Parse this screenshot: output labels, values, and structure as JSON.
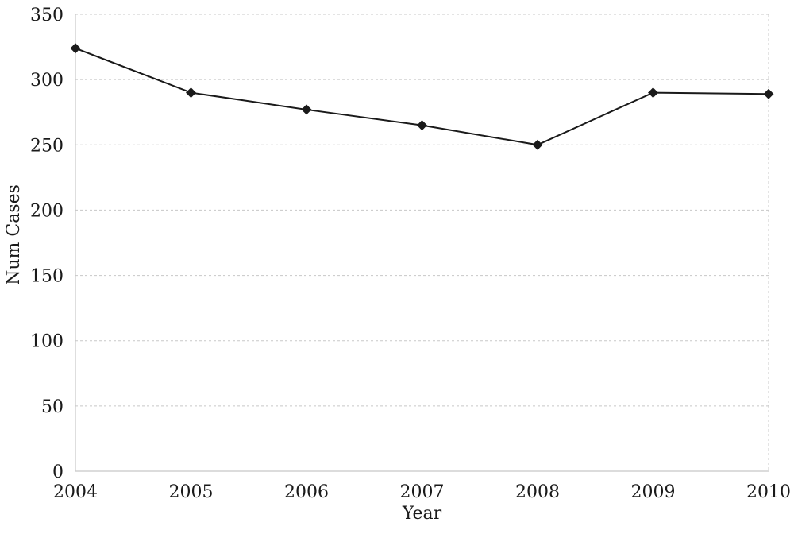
{
  "chart_data": {
    "type": "line",
    "title": "",
    "xlabel": "Year",
    "ylabel": "Num Cases",
    "x": [
      "2004",
      "2005",
      "2006",
      "2007",
      "2008",
      "2009",
      "2010"
    ],
    "series": [
      {
        "values": [
          324,
          290,
          277,
          265,
          250,
          290,
          289
        ]
      }
    ],
    "ylim": [
      0,
      350
    ],
    "yticks": [
      0,
      50,
      100,
      150,
      200,
      250,
      300,
      350
    ],
    "grid": true,
    "marker": "diamond",
    "colors": {
      "series": "#1a1a1a",
      "grid": "#c8c8c8"
    }
  }
}
